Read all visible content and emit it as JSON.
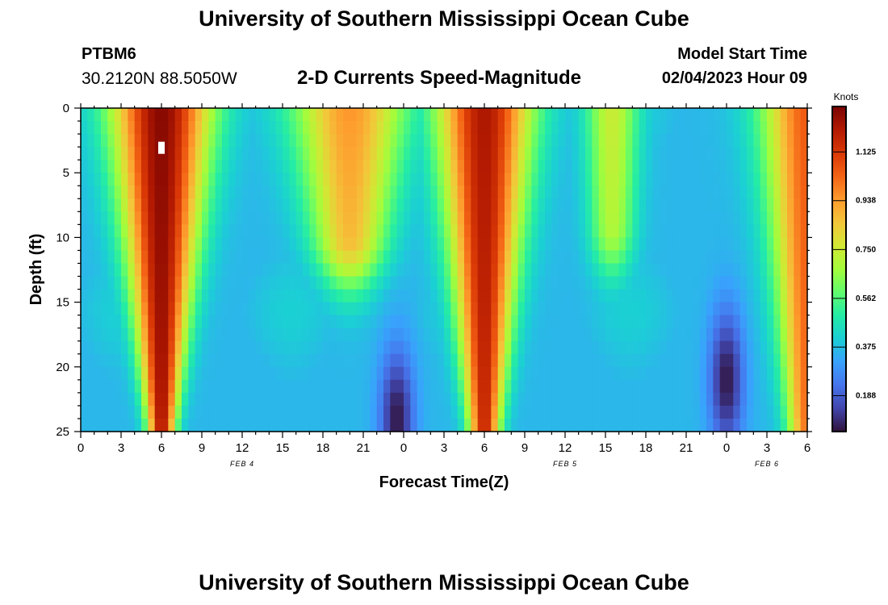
{
  "header": {
    "title": "University of Southern Mississippi Ocean Cube",
    "station": "PTBM6",
    "coordinates": "30.2120N  88.5050W",
    "subtitle": "2-D Currents Speed-Magnitude",
    "model_start_label": "Model Start Time",
    "model_start_value": "02/04/2023 Hour 09"
  },
  "footer": {
    "title": "University of Southern Mississippi Ocean Cube"
  },
  "colors": {
    "colormap": [
      "#30123b",
      "#4145ab",
      "#4675ed",
      "#39a2fc",
      "#1bcfd4",
      "#24eca6",
      "#61fc6c",
      "#a4fc3b",
      "#d1e834",
      "#f3c63a",
      "#fe9b2d",
      "#f36315",
      "#d93806",
      "#b11901",
      "#7a0403"
    ]
  },
  "chart_data": {
    "type": "heatmap",
    "xlabel": "Forecast Time(Z)",
    "ylabel": "Depth (ft)",
    "colorbar_label": "Knots",
    "x_range_hours": [
      0,
      54
    ],
    "y_range_ft": [
      0,
      25
    ],
    "x_ticks": [
      "0",
      "3",
      "6",
      "9",
      "12",
      "15",
      "18",
      "21",
      "0",
      "3",
      "6",
      "9",
      "12",
      "15",
      "18",
      "21",
      "0",
      "3",
      "6"
    ],
    "y_ticks": [
      "0",
      "5",
      "10",
      "15",
      "20",
      "25"
    ],
    "date_labels": [
      {
        "text": "FEB 4",
        "hour": 12
      },
      {
        "text": "FEB 5",
        "hour": 36
      },
      {
        "text": "FEB 6",
        "hour": 51
      }
    ],
    "colorbar_ticks": [
      "0.188",
      "0.375",
      "0.562",
      "0.750",
      "0.938",
      "1.125"
    ],
    "colorbar_range": [
      0.05,
      1.3
    ],
    "peaks": [
      {
        "hour": 6,
        "speed": 1.28,
        "width_top": 2.6,
        "width_bottom": 0.7,
        "depth_extent": 24
      },
      {
        "hour": 20,
        "speed": 0.95,
        "width_top": 3.0,
        "width_bottom": 0.4,
        "depth_extent": 10
      },
      {
        "hour": 30,
        "speed": 1.22,
        "width_top": 2.5,
        "width_bottom": 0.8,
        "depth_extent": 25
      },
      {
        "hour": 39.5,
        "speed": 0.75,
        "width_top": 1.4,
        "width_bottom": 0.8,
        "depth_extent": 9
      },
      {
        "hour": 54,
        "speed": 1.05,
        "width_top": 2.4,
        "width_bottom": 1.0,
        "depth_extent": 24
      }
    ],
    "minima": [
      {
        "hour": 23.5,
        "speed": 0.06,
        "depth_center": 24
      },
      {
        "hour": 48,
        "speed": 0.06,
        "depth_center": 21
      }
    ]
  }
}
